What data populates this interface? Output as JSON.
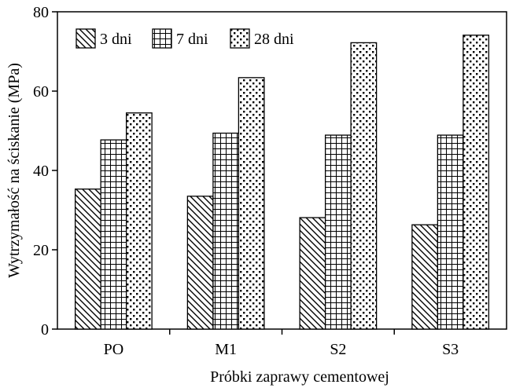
{
  "chart_data": {
    "type": "bar",
    "title": "",
    "xlabel": "Próbki zaprawy cementowej",
    "ylabel": "Wytrzymałość na ściskanie (MPa)",
    "ylim": [
      0,
      80
    ],
    "yticks": [
      0,
      20,
      40,
      60,
      80
    ],
    "categories": [
      "PO",
      "M1",
      "S2",
      "S3"
    ],
    "legend_position": "top-left",
    "grid": false,
    "series": [
      {
        "name": "3 dni",
        "pattern": "diagonal-hatch",
        "values": [
          35.3,
          33.5,
          28.1,
          26.3
        ]
      },
      {
        "name": "7 dni",
        "pattern": "grid-hatch",
        "values": [
          47.7,
          49.4,
          48.9,
          48.9
        ]
      },
      {
        "name": "28 dni",
        "pattern": "dots",
        "values": [
          54.5,
          63.4,
          72.2,
          74.1
        ]
      }
    ],
    "colors": {
      "bar_fill": "#ffffff",
      "ink": "#000000"
    }
  }
}
